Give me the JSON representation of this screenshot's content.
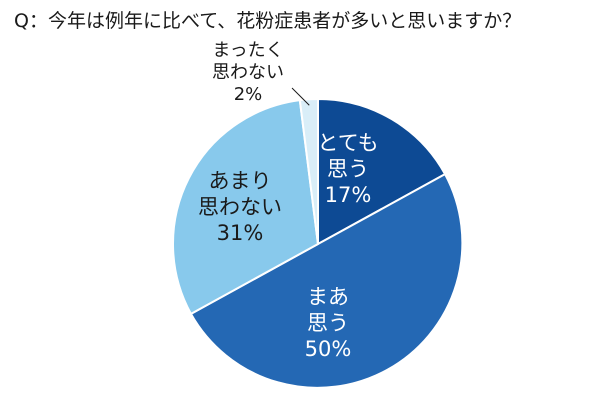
{
  "chart_data": {
    "type": "pie",
    "title": "Q：今年は例年に比べて、花粉症患者が多いと思いますか？",
    "start_angle_deg": 0,
    "direction": "clockwise",
    "slices": [
      {
        "label_lines": [
          "とても",
          "思う"
        ],
        "value": 17,
        "value_text": "17%",
        "color": "#0d4a94"
      },
      {
        "label_lines": [
          "まあ",
          "思う"
        ],
        "value": 50,
        "value_text": "50%",
        "color": "#2468b4"
      },
      {
        "label_lines": [
          "あまり",
          "思わない"
        ],
        "value": 31,
        "value_text": "31%",
        "color": "#88c9ec"
      },
      {
        "label_lines": [
          "まったく",
          "思わない"
        ],
        "value": 2,
        "value_text": "2%",
        "color": "#d9eef8"
      }
    ]
  }
}
